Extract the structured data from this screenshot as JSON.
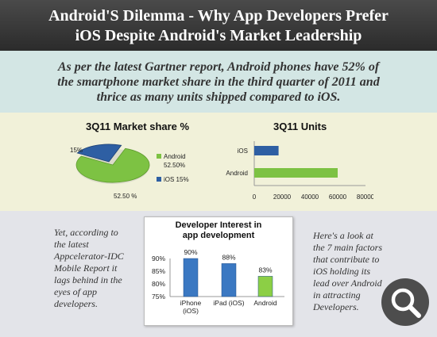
{
  "header": {
    "title_line1": "Android'S Dilemma - Why App Developers Prefer",
    "title_line2": "iOS Despite Android's Market Leadership"
  },
  "intro": {
    "line1": "As per the latest Gartner report, Android phones have 52% of",
    "line2": "the smartphone market share in the third quarter of 2011 and",
    "line3": "thrice as many units shipped compared to iOS."
  },
  "left_text": [
    "Yet, according to",
    "the latest",
    "Appcelerator-IDC",
    "Mobile Report it",
    "lags behind in the",
    "eyes of app",
    "developers."
  ],
  "right_text": [
    "Here's a look at",
    "the 7 main factors",
    "that contribute to",
    "iOS holding its",
    "lead over Android",
    "in attracting",
    "Developers."
  ],
  "colors": {
    "android": "#7dc243",
    "ios": "#2e5fa3",
    "dev_bar": "#3b78c2",
    "dev_bar_android": "#8ccf45"
  },
  "icons": {
    "zoom": "magnifier-icon"
  },
  "chart_data": [
    {
      "type": "pie",
      "title": "3Q11 Market share %",
      "slices": [
        {
          "name": "Android",
          "value": 52.5,
          "label": "Android",
          "value_label": "52.50%"
        },
        {
          "name": "iOS",
          "value": 15,
          "label": "iOS 15%"
        }
      ],
      "data_labels": [
        "15%",
        "52.50  %"
      ]
    },
    {
      "type": "bar",
      "orientation": "horizontal",
      "title": "3Q11 Units",
      "categories": [
        "iOS",
        "Android"
      ],
      "values": [
        17500,
        60000
      ],
      "xlim": [
        0,
        80000
      ],
      "xticks": [
        "0",
        "20000",
        "40000",
        "60000",
        "80000"
      ]
    },
    {
      "type": "bar",
      "title_line1": "Developer Interest in",
      "title_line2": "app development",
      "categories": [
        "iPhone (iOS)",
        "iPad (iOS)",
        "Android"
      ],
      "category_lines": [
        [
          "iPhone",
          "(iOS)"
        ],
        [
          "iPad (iOS)"
        ],
        [
          "Android"
        ]
      ],
      "values": [
        90,
        88,
        83
      ],
      "data_labels": [
        "90%",
        "88%",
        "83%"
      ],
      "ylim": [
        75,
        90
      ],
      "yticks": [
        "75%",
        "80%",
        "85%",
        "90%"
      ]
    }
  ]
}
